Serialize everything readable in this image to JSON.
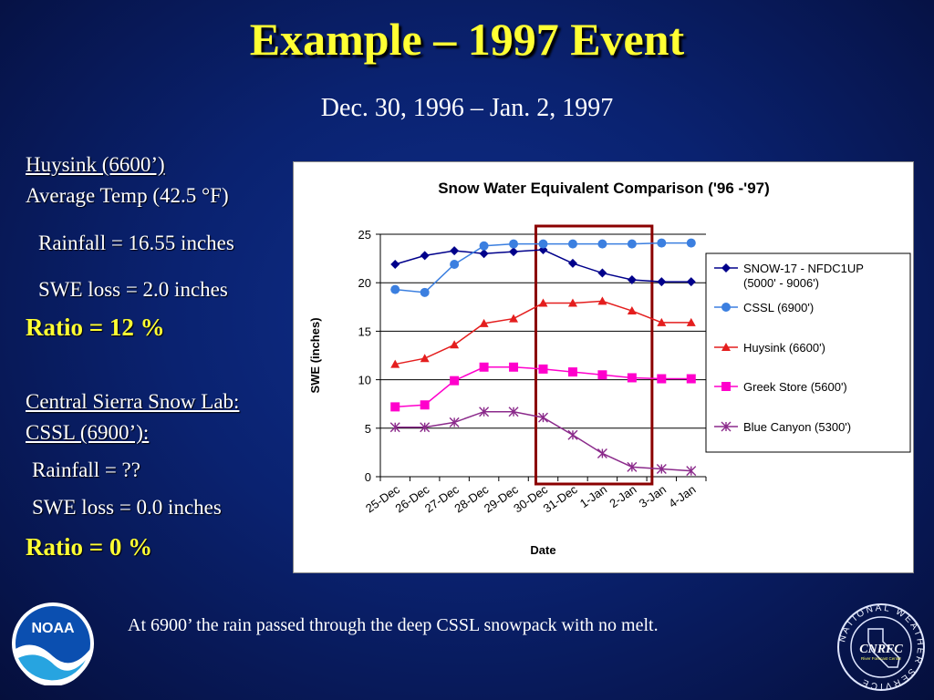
{
  "slide": {
    "title": "Example – 1997 Event",
    "subtitle": "Dec. 30, 1996 – Jan. 2, 1997",
    "caption": "At 6900’ the rain passed through the deep CSSL snowpack with no melt."
  },
  "left_panel": {
    "site1_name": "Huysink (6600’)",
    "site1_temp": "Average Temp (42.5 °F)",
    "site1_rain": "Rainfall = 16.55 inches",
    "site1_swe": "SWE loss  = 2.0 inches",
    "site1_ratio": "Ratio = 12 %",
    "site2_name_line1": "Central Sierra Snow Lab:",
    "site2_name_line2": "CSSL (6900’):",
    "site2_rain": "Rainfall = ??",
    "site2_swe": "SWE loss  = 0.0 inches",
    "site2_ratio": "Ratio = 0 %"
  },
  "logos": {
    "noaa_text": "NOAA",
    "nws_center": "CNRFC",
    "nws_sub": "River Forecast Center",
    "nws_ring": "NATIONAL WEATHER SERVICE"
  },
  "chart_data": {
    "type": "line",
    "title": "Snow Water Equivalent Comparison ('96 -'97)",
    "xlabel": "Date",
    "ylabel": "SWE (inches)",
    "ylim": [
      0,
      25
    ],
    "yticks": [
      0,
      5,
      10,
      15,
      20,
      25
    ],
    "grid": "horizontal",
    "legend_position": "right",
    "categories": [
      "25-Dec",
      "26-Dec",
      "27-Dec",
      "28-Dec",
      "29-Dec",
      "30-Dec",
      "31-Dec",
      "1-Jan",
      "2-Jan",
      "3-Jan",
      "4-Jan"
    ],
    "highlight_range": [
      "30-Dec",
      "2-Jan"
    ],
    "highlight_color": "#8b0000",
    "series": [
      {
        "name": "SNOW-17 - NFDC1UP (5000' - 9006')",
        "name_lines": [
          "SNOW-17 - NFDC1UP",
          "(5000' - 9006')"
        ],
        "color": "#00008b",
        "marker": "diamond",
        "values": [
          21.9,
          22.8,
          23.3,
          23.0,
          23.2,
          23.4,
          22.0,
          21.0,
          20.3,
          20.1,
          20.1
        ]
      },
      {
        "name": "CSSL (6900')",
        "color": "#3b7fe0",
        "marker": "circle",
        "values": [
          19.3,
          19.0,
          21.9,
          23.8,
          24.0,
          24.0,
          24.0,
          24.0,
          24.0,
          24.1,
          24.1
        ]
      },
      {
        "name": "Huysink (6600')",
        "color": "#e41e1e",
        "marker": "triangle",
        "values": [
          11.6,
          12.2,
          13.6,
          15.8,
          16.3,
          17.9,
          17.9,
          18.1,
          17.1,
          15.9,
          15.9
        ]
      },
      {
        "name": "Greek Store (5600')",
        "color": "#ff00cc",
        "marker": "square",
        "values": [
          7.2,
          7.4,
          9.9,
          11.3,
          11.3,
          11.1,
          10.8,
          10.5,
          10.2,
          10.1,
          10.1
        ]
      },
      {
        "name": "Blue Canyon (5300')",
        "color": "#8b2a8b",
        "marker": "star",
        "values": [
          5.1,
          5.1,
          5.6,
          6.7,
          6.7,
          6.1,
          4.3,
          2.4,
          1.0,
          0.8,
          0.6
        ]
      }
    ]
  }
}
